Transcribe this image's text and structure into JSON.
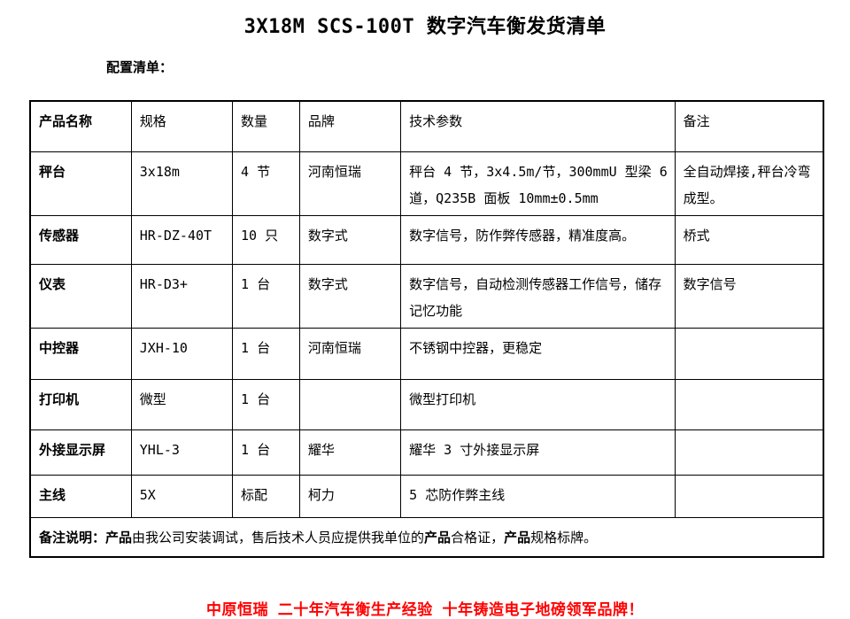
{
  "page": {
    "title": "3X18M SCS-100T 数字汽车衡发货清单",
    "section_label": "配置清单：",
    "slogan": "中原恒瑞 二十年汽车衡生产经验 十年铸造电子地磅领军品牌！",
    "slogan_color": "#ff0000"
  },
  "table": {
    "headers": {
      "name": "产品名称",
      "spec": "规格",
      "qty": "数量",
      "brand": "品牌",
      "tech": "技术参数",
      "note": "备注"
    },
    "rows": [
      {
        "name": "秤台",
        "spec": "3x18m",
        "qty": "4 节",
        "brand": "河南恒瑞",
        "tech": "秤台 4 节，3x4.5m/节，300mmU 型梁 6 道，Q235B 面板 10mm±0.5mm",
        "note": "全自动焊接,秤台冷弯成型。"
      },
      {
        "name": "传感器",
        "spec": "HR-DZ-40T",
        "qty": "10 只",
        "brand": "数字式",
        "tech": "数字信号，防作弊传感器，精准度高。",
        "note": "桥式"
      },
      {
        "name": "仪表",
        "spec": "HR-D3+",
        "qty": "1 台",
        "brand": "数字式",
        "tech": "数字信号，自动检测传感器工作信号，储存记忆功能",
        "note": "数字信号"
      },
      {
        "name": "中控器",
        "spec": "JXH-10",
        "qty": "1 台",
        "brand": "河南恒瑞",
        "tech": "不锈钢中控器，更稳定",
        "note": ""
      },
      {
        "name": "打印机",
        "spec": "微型",
        "qty": "1 台",
        "brand": "",
        "tech": "微型打印机",
        "note": ""
      },
      {
        "name": "外接显示屏",
        "spec": "YHL-3",
        "qty": "1 台",
        "brand": "耀华",
        "tech": "耀华 3 寸外接显示屏",
        "note": ""
      },
      {
        "name": "主线",
        "spec": "5X",
        "qty": "标配",
        "brand": "柯力",
        "tech": "5 芯防作弊主线",
        "note": ""
      }
    ],
    "remark": {
      "segments": [
        {
          "text": "备注说明：",
          "bold": true
        },
        {
          "text": "产品",
          "bold": true
        },
        {
          "text": "由我公司安装调试，售后技术人员应提供我单位的",
          "bold": false
        },
        {
          "text": "产品",
          "bold": true
        },
        {
          "text": "合格证，",
          "bold": false
        },
        {
          "text": "产品",
          "bold": true
        },
        {
          "text": "规格标牌。",
          "bold": false
        }
      ]
    }
  }
}
